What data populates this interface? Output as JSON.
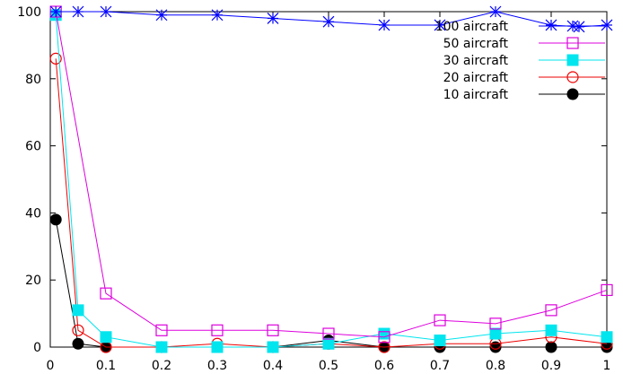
{
  "chart_data": {
    "type": "line",
    "title": "",
    "xlabel": "",
    "ylabel": "",
    "xlim": [
      0,
      1
    ],
    "ylim": [
      0,
      100
    ],
    "grid": false,
    "legend_position": "top-right",
    "xticks": [
      {
        "value": 0,
        "label": "0"
      },
      {
        "value": 0.1,
        "label": "0.1"
      },
      {
        "value": 0.2,
        "label": "0.2"
      },
      {
        "value": 0.3,
        "label": "0.3"
      },
      {
        "value": 0.4,
        "label": "0.4"
      },
      {
        "value": 0.5,
        "label": "0.5"
      },
      {
        "value": 0.6,
        "label": "0.6"
      },
      {
        "value": 0.7,
        "label": "0.7"
      },
      {
        "value": 0.8,
        "label": "0.8"
      },
      {
        "value": 0.9,
        "label": "0.9"
      },
      {
        "value": 1,
        "label": "1"
      }
    ],
    "yticks": [
      {
        "value": 0,
        "label": "0"
      },
      {
        "value": 20,
        "label": "20"
      },
      {
        "value": 40,
        "label": "40"
      },
      {
        "value": 60,
        "label": "60"
      },
      {
        "value": 80,
        "label": "80"
      },
      {
        "value": 100,
        "label": "100"
      }
    ],
    "series": [
      {
        "name": "100 aircraft",
        "color": "#0000ff",
        "marker": "asterisk",
        "x": [
          0.01,
          0.05,
          0.1,
          0.2,
          0.3,
          0.4,
          0.5,
          0.6,
          0.7,
          0.8,
          0.9,
          0.95,
          1.0
        ],
        "y": [
          100,
          100,
          100,
          99,
          99,
          98,
          97,
          96,
          96,
          100,
          96,
          95.5,
          96
        ]
      },
      {
        "name": "50 aircraft",
        "color": "#dd00dd",
        "marker": "open-square",
        "x": [
          0.01,
          0.1,
          0.2,
          0.3,
          0.4,
          0.5,
          0.6,
          0.7,
          0.8,
          0.9,
          1.0
        ],
        "y": [
          100,
          16,
          5,
          5,
          5,
          4,
          3,
          8,
          7,
          11,
          17
        ]
      },
      {
        "name": "30 aircraft",
        "color": "#00e5ee",
        "marker": "filled-square",
        "x": [
          0.01,
          0.05,
          0.1,
          0.2,
          0.3,
          0.4,
          0.5,
          0.6,
          0.7,
          0.8,
          0.9,
          1.0
        ],
        "y": [
          99,
          11,
          3,
          0,
          0,
          0,
          1,
          4,
          2,
          4,
          5,
          3
        ]
      },
      {
        "name": "20 aircraft",
        "color": "#ee0000",
        "marker": "open-circle",
        "x": [
          0.01,
          0.05,
          0.1,
          0.2,
          0.3,
          0.4,
          0.5,
          0.6,
          0.7,
          0.8,
          0.9,
          1.0
        ],
        "y": [
          86,
          5,
          0,
          0,
          1,
          0,
          1,
          0,
          1,
          1,
          3,
          1
        ]
      },
      {
        "name": "10 aircraft",
        "color": "#000000",
        "marker": "filled-circle",
        "x": [
          0.01,
          0.05,
          0.1,
          0.2,
          0.3,
          0.4,
          0.5,
          0.6,
          0.7,
          0.8,
          0.9,
          1.0
        ],
        "y": [
          38,
          1,
          0,
          0,
          0,
          0,
          2,
          0,
          0,
          0,
          0,
          0
        ]
      }
    ]
  }
}
